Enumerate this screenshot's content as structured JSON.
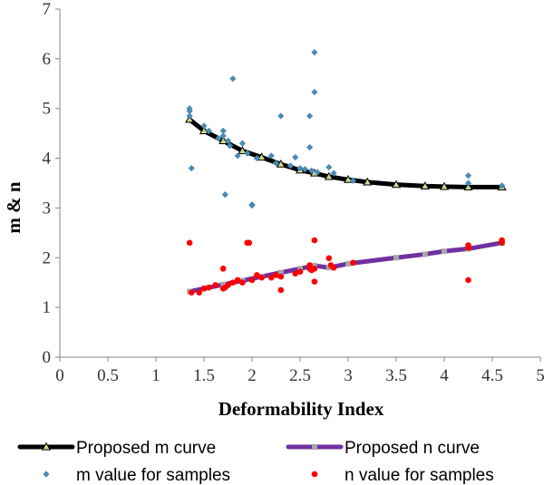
{
  "chart_data": {
    "type": "scatter",
    "xlabel": "Deformability Index",
    "ylabel": "m & n",
    "xlim": [
      0,
      5
    ],
    "ylim": [
      0,
      7
    ],
    "xticks": [
      "0",
      "0.5",
      "1",
      "1.5",
      "2",
      "2.5",
      "3",
      "3.5",
      "4",
      "4.5",
      "5"
    ],
    "yticks": [
      "0",
      "1",
      "2",
      "3",
      "4",
      "5",
      "6",
      "7"
    ],
    "grid": false,
    "legend_position": "bottom",
    "series": [
      {
        "name": "Proposed m curve",
        "kind": "line",
        "marker": "triangle",
        "color": "#000000",
        "marker_color": "#c9d98a",
        "x": [
          1.35,
          1.5,
          1.7,
          1.9,
          2.1,
          2.3,
          2.5,
          2.65,
          2.8,
          3.0,
          3.2,
          3.5,
          3.8,
          4.0,
          4.25,
          4.6
        ],
        "y": [
          4.78,
          4.55,
          4.35,
          4.15,
          4.02,
          3.88,
          3.76,
          3.7,
          3.63,
          3.57,
          3.52,
          3.47,
          3.44,
          3.43,
          3.42,
          3.42
        ]
      },
      {
        "name": "Proposed n curve",
        "kind": "line",
        "marker": "square",
        "color": "#7030a0",
        "marker_color": "#a6a6a6",
        "x": [
          1.35,
          1.5,
          1.7,
          1.9,
          2.1,
          2.3,
          2.5,
          2.65,
          2.8,
          3.0,
          3.5,
          3.8,
          4.0,
          4.25,
          4.6
        ],
        "y": [
          1.32,
          1.38,
          1.46,
          1.54,
          1.62,
          1.7,
          1.78,
          1.84,
          1.8,
          1.88,
          2.0,
          2.07,
          2.13,
          2.18,
          2.3
        ]
      },
      {
        "name": "m value for samples",
        "kind": "scatter",
        "marker": "diamond",
        "color": "#4a8ab5",
        "x": [
          1.35,
          1.35,
          1.35,
          1.37,
          1.5,
          1.55,
          1.65,
          1.7,
          1.7,
          1.72,
          1.75,
          1.77,
          1.8,
          1.85,
          1.9,
          1.95,
          2.0,
          2.0,
          2.05,
          2.2,
          2.25,
          2.3,
          2.4,
          2.45,
          2.5,
          2.55,
          2.6,
          2.6,
          2.62,
          2.65,
          2.65,
          2.68,
          2.8,
          2.85,
          3.05,
          4.25,
          4.25,
          4.6
        ],
        "y": [
          4.95,
          5.0,
          4.85,
          3.8,
          4.65,
          4.55,
          4.4,
          4.55,
          4.45,
          3.27,
          4.35,
          4.25,
          5.6,
          4.05,
          4.3,
          4.1,
          3.05,
          3.07,
          4.0,
          4.05,
          3.9,
          4.85,
          3.85,
          4.02,
          3.8,
          3.78,
          4.85,
          4.22,
          3.75,
          6.13,
          5.33,
          3.72,
          3.82,
          3.7,
          3.55,
          3.65,
          3.5,
          3.45
        ]
      },
      {
        "name": "n value for samples",
        "kind": "scatter",
        "marker": "circle",
        "color": "#ff0000",
        "x": [
          1.35,
          1.37,
          1.45,
          1.5,
          1.55,
          1.62,
          1.7,
          1.7,
          1.72,
          1.75,
          1.8,
          1.85,
          1.9,
          1.95,
          1.97,
          2.0,
          2.05,
          2.1,
          2.2,
          2.25,
          2.3,
          2.3,
          2.45,
          2.5,
          2.6,
          2.6,
          2.62,
          2.65,
          2.65,
          2.65,
          2.8,
          2.82,
          2.85,
          3.05,
          4.25,
          4.25,
          4.25,
          4.6,
          4.6
        ],
        "y": [
          2.3,
          1.3,
          1.3,
          1.38,
          1.4,
          1.45,
          1.78,
          1.38,
          1.4,
          1.45,
          1.5,
          1.55,
          1.5,
          2.3,
          2.3,
          1.55,
          1.65,
          1.6,
          1.6,
          1.65,
          1.62,
          1.35,
          1.68,
          1.72,
          1.78,
          1.85,
          1.75,
          2.35,
          1.52,
          1.78,
          1.99,
          1.85,
          1.8,
          1.9,
          2.25,
          2.2,
          1.55,
          2.3,
          2.35
        ]
      }
    ]
  }
}
